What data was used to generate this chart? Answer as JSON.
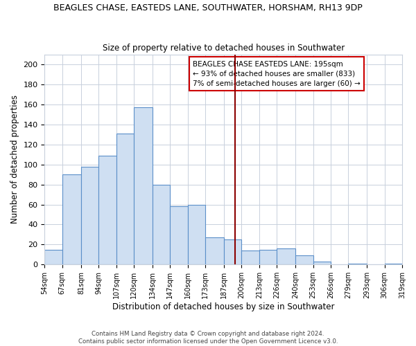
{
  "title": "BEAGLES CHASE, EASTEDS LANE, SOUTHWATER, HORSHAM, RH13 9DP",
  "subtitle": "Size of property relative to detached houses in Southwater",
  "xlabel": "Distribution of detached houses by size in Southwater",
  "ylabel": "Number of detached properties",
  "bar_edges": [
    54,
    67,
    81,
    94,
    107,
    120,
    134,
    147,
    160,
    173,
    187,
    200,
    213,
    226,
    240,
    253,
    266,
    279,
    293,
    306,
    319
  ],
  "bar_heights": [
    15,
    90,
    98,
    109,
    131,
    157,
    80,
    58,
    60,
    27,
    25,
    14,
    15,
    16,
    9,
    3,
    0,
    1,
    0,
    1
  ],
  "bar_color": "#cfdff2",
  "bar_edge_color": "#5b8fc9",
  "vline_x": 195,
  "vline_color": "#8b0000",
  "annotation_line1": "BEAGLES CHASE EASTEDS LANE: 195sqm",
  "annotation_line2": "← 93% of detached houses are smaller (833)",
  "annotation_line3": "7% of semi-detached houses are larger (60) →",
  "ylim": [
    0,
    210
  ],
  "yticks": [
    0,
    20,
    40,
    60,
    80,
    100,
    120,
    140,
    160,
    180,
    200
  ],
  "tick_labels": [
    "54sqm",
    "67sqm",
    "81sqm",
    "94sqm",
    "107sqm",
    "120sqm",
    "134sqm",
    "147sqm",
    "160sqm",
    "173sqm",
    "187sqm",
    "200sqm",
    "213sqm",
    "226sqm",
    "240sqm",
    "253sqm",
    "266sqm",
    "279sqm",
    "293sqm",
    "306sqm",
    "319sqm"
  ],
  "footer_text": "Contains HM Land Registry data © Crown copyright and database right 2024.\nContains public sector information licensed under the Open Government Licence v3.0.",
  "background_color": "#ffffff",
  "grid_color": "#c8d0dc"
}
